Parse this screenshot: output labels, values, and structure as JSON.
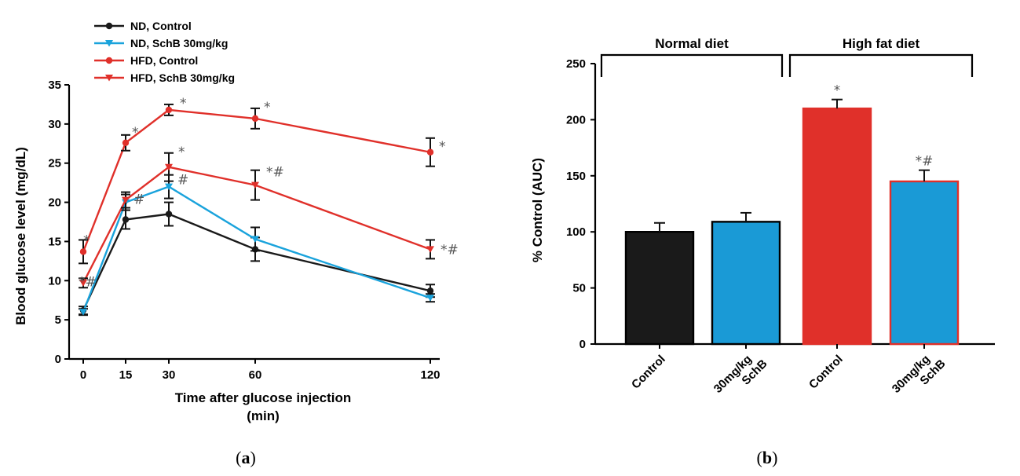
{
  "captions": {
    "a": "a",
    "b": "b"
  },
  "chart_data": [
    {
      "type": "line",
      "xlabel": [
        "Time after glucose injection",
        "(min)"
      ],
      "ylabel": "Blood glucose level (mg/dL)",
      "x": [
        0,
        15,
        30,
        60,
        120
      ],
      "xticks": [
        0,
        15,
        30,
        60,
        120
      ],
      "yticks": [
        0,
        5,
        10,
        15,
        20,
        25,
        30,
        35
      ],
      "ylim": [
        0,
        35
      ],
      "legend_position": "top-left",
      "series": [
        {
          "name": "ND, Control",
          "color": "#1a1a1a",
          "marker": "circle",
          "values": [
            6.2,
            17.8,
            18.5,
            14.0,
            8.7
          ],
          "errors": [
            0.5,
            1.2,
            1.5,
            1.5,
            0.8
          ],
          "annotations": [
            "",
            "",
            "",
            "",
            ""
          ]
        },
        {
          "name": "ND, SchB 30mg/kg",
          "color": "#1aa3dc",
          "marker": "triangle-down",
          "values": [
            6.0,
            20.0,
            22.0,
            15.3,
            7.8
          ],
          "errors": [
            0.4,
            1.0,
            1.5,
            1.5,
            0.5
          ],
          "annotations": [
            "",
            "#",
            "#",
            "",
            ""
          ]
        },
        {
          "name": "HFD, Control",
          "color": "#e0302a",
          "marker": "circle",
          "values": [
            13.7,
            27.6,
            31.8,
            30.7,
            26.4
          ],
          "errors": [
            1.5,
            1.0,
            0.7,
            1.3,
            1.8
          ],
          "annotations": [
            "*",
            "*",
            "*",
            "*",
            "*"
          ]
        },
        {
          "name": "HFD, SchB 30mg/kg",
          "color": "#e0302a",
          "marker": "triangle-down",
          "values": [
            9.7,
            20.3,
            24.5,
            22.2,
            14.0
          ],
          "errors": [
            0.6,
            1.0,
            1.8,
            1.9,
            1.2
          ],
          "annotations": [
            "*#",
            "",
            "*",
            "*#",
            "*#"
          ]
        }
      ]
    },
    {
      "type": "bar",
      "ylabel": "% Control (AUC)",
      "ylim": [
        0,
        250
      ],
      "yticks": [
        0,
        50,
        100,
        150,
        200,
        250
      ],
      "groups": [
        {
          "label": "Normal diet"
        },
        {
          "label": "High fat diet"
        }
      ],
      "bars": [
        {
          "category": [
            "Control"
          ],
          "value": 100,
          "error": 8,
          "fill": "#1a1a1a",
          "edge": "#000000",
          "annotation": ""
        },
        {
          "category": [
            "30mg/kg",
            "SchB"
          ],
          "value": 109,
          "error": 8,
          "fill": "#1a9ad6",
          "edge": "#000000",
          "annotation": ""
        },
        {
          "category": [
            "Control"
          ],
          "value": 210,
          "error": 8,
          "fill": "#e0302a",
          "edge": "#e0302a",
          "annotation": "*"
        },
        {
          "category": [
            "30mg/kg",
            "SchB"
          ],
          "value": 145,
          "error": 10,
          "fill": "#1a9ad6",
          "edge": "#e0302a",
          "annotation": "*#"
        }
      ]
    }
  ]
}
